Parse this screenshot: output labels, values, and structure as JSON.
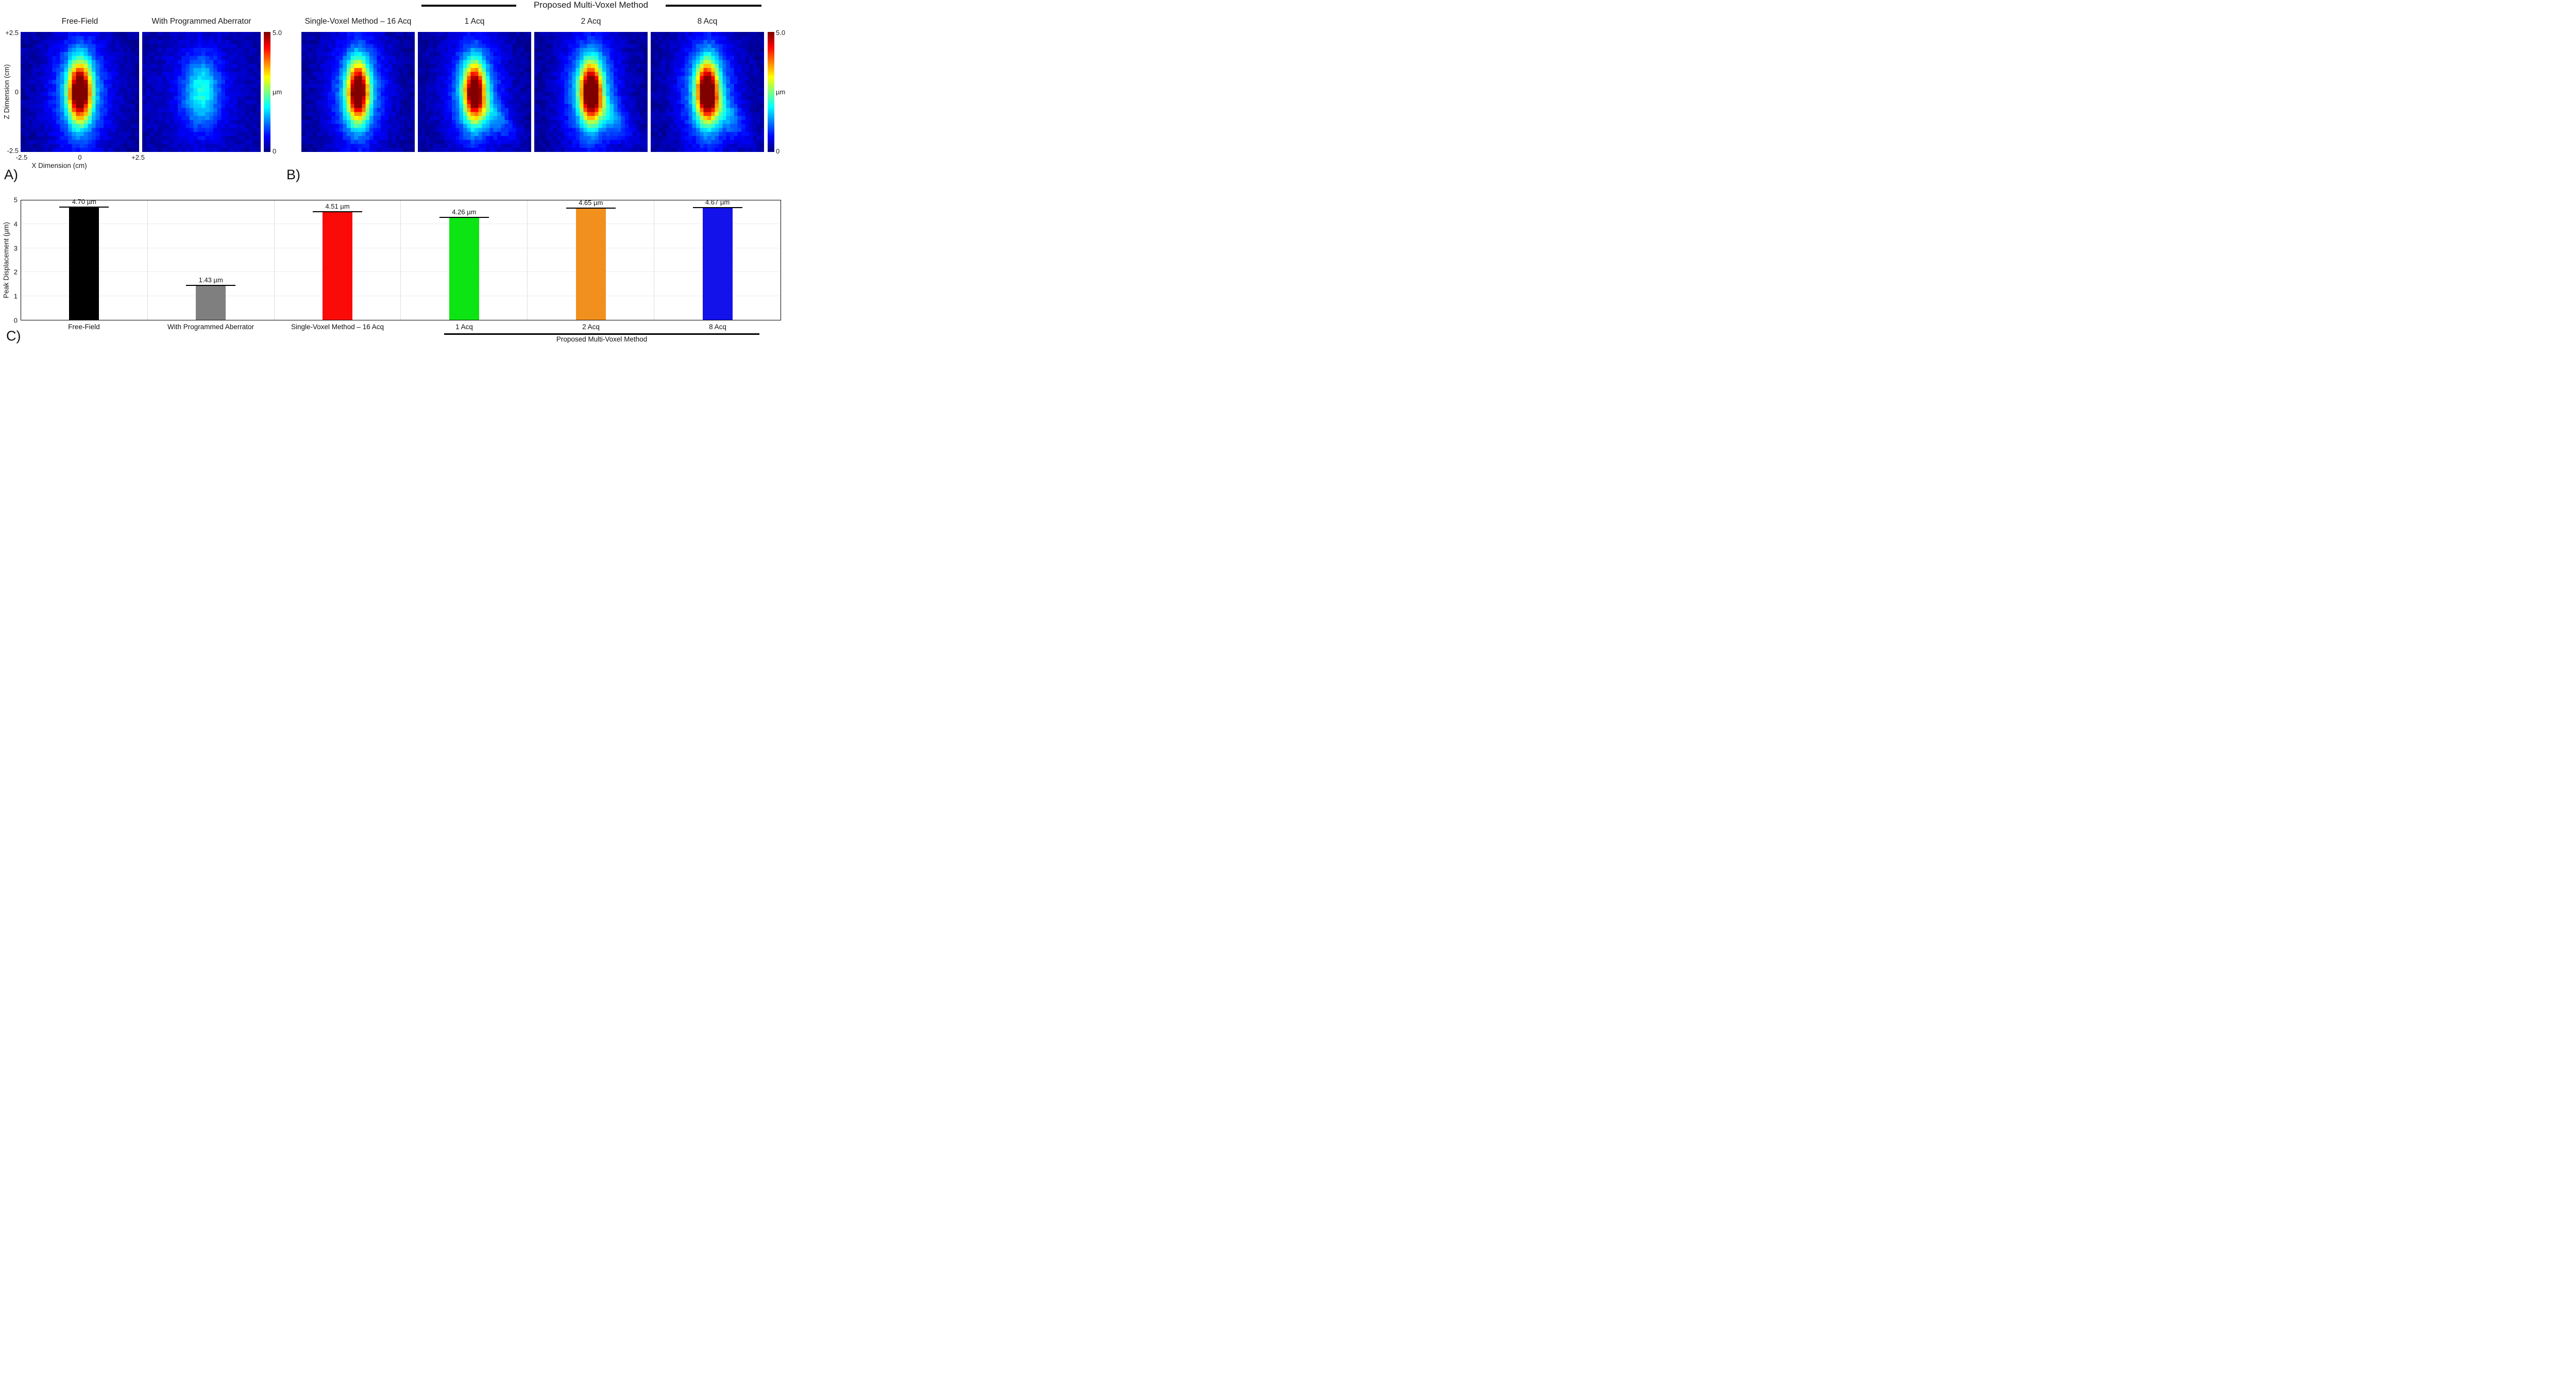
{
  "panels": {
    "a": "A)",
    "b": "B)",
    "c": "C)"
  },
  "chart_data": [
    {
      "type": "heatmap",
      "group_header": "Proposed Multi-Voxel Method",
      "xlabel": "X Dimension (cm)",
      "ylabel": "Z Dimension (cm)",
      "x_ticks": [
        "-2.5",
        "0",
        "+2.5"
      ],
      "z_ticks": [
        "+2.5",
        "0",
        "-2.5"
      ],
      "x_range": [
        -2.5,
        2.5
      ],
      "z_range": [
        -2.5,
        2.5
      ],
      "grid_size": 30,
      "colormap": "jet",
      "color_scale": [
        0,
        5
      ],
      "colorbar": {
        "top": "5.0",
        "unit": "µm",
        "bottom": "0"
      },
      "maps": [
        {
          "title": "Free-Field",
          "peak": 4.7,
          "sigma_x": 0.33,
          "sigma_z": 0.85,
          "tail": false
        },
        {
          "title": "With Programmed Aberrator",
          "peak": 1.43,
          "sigma_x": 0.52,
          "sigma_z": 1.0,
          "tail": false
        },
        {
          "title": "Single-Voxel Method – 16 Acq",
          "peak": 4.51,
          "sigma_x": 0.33,
          "sigma_z": 0.85,
          "tail": false
        },
        {
          "title": "1 Acq",
          "peak": 4.26,
          "sigma_x": 0.33,
          "sigma_z": 0.85,
          "tail": true
        },
        {
          "title": "2 Acq",
          "peak": 4.65,
          "sigma_x": 0.33,
          "sigma_z": 0.85,
          "tail": true
        },
        {
          "title": "8 Acq",
          "peak": 4.67,
          "sigma_x": 0.33,
          "sigma_z": 0.85,
          "tail": true
        }
      ]
    },
    {
      "type": "bar",
      "categories": [
        "Free-Field",
        "With Programmed Aberrator",
        "Single-Voxel Method – 16 Acq",
        "1 Acq",
        "2 Acq",
        "8 Acq"
      ],
      "values": [
        4.7,
        1.43,
        4.51,
        4.26,
        4.65,
        4.67
      ],
      "bar_labels": [
        "4.70 µm",
        "1.43 µm",
        "4.51 µm",
        "4.26 µm",
        "4.65 µm",
        "4.67 µm"
      ],
      "colors": [
        "#000000",
        "#7f7f7f",
        "#fa0b08",
        "#0ce414",
        "#f2901e",
        "#1412ea"
      ],
      "ylabel": "Peak Displacement (µm)",
      "ylim": [
        0,
        5
      ],
      "yticks": [
        0,
        1,
        2,
        3,
        4,
        5
      ],
      "grid": true,
      "legend": false,
      "group_annotation": {
        "label": "Proposed Multi-Voxel Method",
        "span": [
          "1 Acq",
          "2 Acq",
          "8 Acq"
        ]
      }
    }
  ]
}
